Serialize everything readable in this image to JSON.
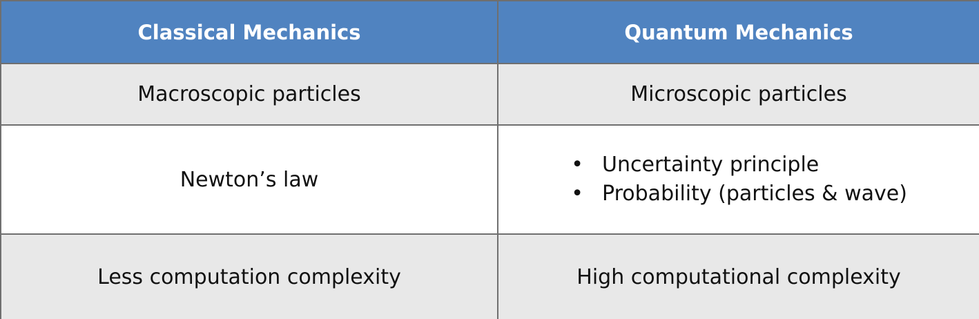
{
  "header": {
    "left": "Classical Mechanics",
    "right": "Quantum Mechanics"
  },
  "rows": [
    {
      "left": "Macroscopic particles",
      "right": "Microscopic particles"
    },
    {
      "left": "Newton’s law",
      "right_items": [
        "Uncertainty principle",
        "Probability (particles & wave)"
      ]
    },
    {
      "left": "Less computation complexity",
      "right": "High computational complexity"
    }
  ],
  "colors": {
    "header_bg": "#5083c0",
    "header_text": "#ffffff",
    "shaded_row": "#e8e8e8",
    "border": "#6f6f6f"
  },
  "bullet_symbol": "•"
}
